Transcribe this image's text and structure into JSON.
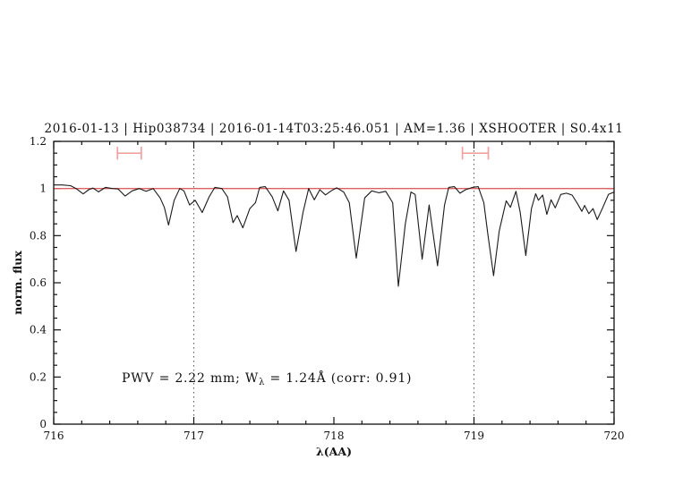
{
  "header": {
    "title": "2016-01-13 | Hip038734 | 2016-01-14T03:25:46.051 | AM=1.36 | XSHOOTER | S0.4x11"
  },
  "annotation": {
    "prefix": "PWV = 2.22 mm; W",
    "subscript": "λ",
    "suffix": " = 1.24Å (corr: 0.91)",
    "full_text": "PWV = 2.22 mm; Wλ = 1.24Å (corr: 0.91)"
  },
  "colors": {
    "title_blue": "#1a1ae0",
    "annotation_blue": "#1a1ae0",
    "spectrum_black": "#1a1a1a",
    "continuum_red": "#e06060",
    "marker_pink": "#f2a0a0",
    "guide_gray": "#555555",
    "axis_black": "#111111"
  },
  "chart_data": {
    "type": "line",
    "title": "2016-01-13 | Hip038734 | 2016-01-14T03:25:46.051 | AM=1.36 | XSHOOTER | S0.4x11",
    "xlabel": "λ(AA)",
    "ylabel": "norm. flux",
    "xlim": [
      716,
      720
    ],
    "ylim": [
      0,
      1.2
    ],
    "grid": false,
    "legend": null,
    "axes": {
      "xticks_major": [
        716,
        717,
        718,
        719,
        720
      ],
      "xtick_labels": [
        "716",
        "717",
        "718",
        "719",
        "720"
      ],
      "x_minor_step": 0.2,
      "yticks_major": [
        0,
        0.2,
        0.4,
        0.6,
        0.8,
        1,
        1.2
      ],
      "ytick_labels": [
        "0",
        "0.2",
        "0.4",
        "0.6",
        "0.8",
        "1",
        "1.2"
      ],
      "y_minor_step": 0.05,
      "box": true,
      "ticks_inward": true
    },
    "guide_lines_x": [
      717,
      719
    ],
    "continuum_level": 1.0,
    "interval_markers": [
      {
        "center": 716.54,
        "width": 0.17,
        "flux": 1.15,
        "cap_halfheight_flux": 0.027
      },
      {
        "center": 719.01,
        "width": 0.185,
        "flux": 1.15,
        "cap_halfheight_flux": 0.027
      }
    ],
    "series": [
      {
        "name": "observed-spectrum",
        "points": [
          [
            716.0,
            1.015
          ],
          [
            716.06,
            1.015
          ],
          [
            716.12,
            1.012
          ],
          [
            716.16,
            1.0
          ],
          [
            716.21,
            0.977
          ],
          [
            716.25,
            0.995
          ],
          [
            716.28,
            1.002
          ],
          [
            716.32,
            0.986
          ],
          [
            716.37,
            1.005
          ],
          [
            716.42,
            1.0
          ],
          [
            716.46,
            0.998
          ],
          [
            716.51,
            0.968
          ],
          [
            716.56,
            0.99
          ],
          [
            716.61,
            1.0
          ],
          [
            716.66,
            0.988
          ],
          [
            716.71,
            1.0
          ],
          [
            716.76,
            0.96
          ],
          [
            716.79,
            0.92
          ],
          [
            716.82,
            0.845
          ],
          [
            716.86,
            0.95
          ],
          [
            716.9,
            1.0
          ],
          [
            716.93,
            0.99
          ],
          [
            716.97,
            0.93
          ],
          [
            717.01,
            0.95
          ],
          [
            717.06,
            0.898
          ],
          [
            717.11,
            0.965
          ],
          [
            717.15,
            1.005
          ],
          [
            717.2,
            1.0
          ],
          [
            717.24,
            0.965
          ],
          [
            717.28,
            0.855
          ],
          [
            717.31,
            0.885
          ],
          [
            717.35,
            0.833
          ],
          [
            717.4,
            0.915
          ],
          [
            717.44,
            0.94
          ],
          [
            717.47,
            1.005
          ],
          [
            717.51,
            1.008
          ],
          [
            717.56,
            0.965
          ],
          [
            717.6,
            0.905
          ],
          [
            717.64,
            0.99
          ],
          [
            717.68,
            0.95
          ],
          [
            717.73,
            0.733
          ],
          [
            717.78,
            0.9
          ],
          [
            717.82,
            1.0
          ],
          [
            717.86,
            0.952
          ],
          [
            717.9,
            0.995
          ],
          [
            717.94,
            0.973
          ],
          [
            717.98,
            0.99
          ],
          [
            718.02,
            1.003
          ],
          [
            718.07,
            0.985
          ],
          [
            718.11,
            0.94
          ],
          [
            718.16,
            0.705
          ],
          [
            718.22,
            0.96
          ],
          [
            718.27,
            0.99
          ],
          [
            718.32,
            0.982
          ],
          [
            718.37,
            0.988
          ],
          [
            718.42,
            0.94
          ],
          [
            718.46,
            0.585
          ],
          [
            718.51,
            0.85
          ],
          [
            718.55,
            0.985
          ],
          [
            718.58,
            0.975
          ],
          [
            718.63,
            0.7
          ],
          [
            718.68,
            0.93
          ],
          [
            718.74,
            0.672
          ],
          [
            718.79,
            0.93
          ],
          [
            718.82,
            1.005
          ],
          [
            718.86,
            1.008
          ],
          [
            718.9,
            0.98
          ],
          [
            718.94,
            0.995
          ],
          [
            718.99,
            1.005
          ],
          [
            719.03,
            1.008
          ],
          [
            719.07,
            0.94
          ],
          [
            719.1,
            0.8
          ],
          [
            719.14,
            0.63
          ],
          [
            719.18,
            0.82
          ],
          [
            719.23,
            0.948
          ],
          [
            719.26,
            0.92
          ],
          [
            719.3,
            0.988
          ],
          [
            719.33,
            0.9
          ],
          [
            719.37,
            0.716
          ],
          [
            719.41,
            0.915
          ],
          [
            719.44,
            0.978
          ],
          [
            719.46,
            0.95
          ],
          [
            719.49,
            0.972
          ],
          [
            719.52,
            0.89
          ],
          [
            719.55,
            0.952
          ],
          [
            719.58,
            0.918
          ],
          [
            719.62,
            0.975
          ],
          [
            719.66,
            0.98
          ],
          [
            719.7,
            0.972
          ],
          [
            719.74,
            0.935
          ],
          [
            719.77,
            0.903
          ],
          [
            719.79,
            0.928
          ],
          [
            719.82,
            0.893
          ],
          [
            719.85,
            0.915
          ],
          [
            719.88,
            0.868
          ],
          [
            719.92,
            0.92
          ],
          [
            719.96,
            0.975
          ],
          [
            720.0,
            0.985
          ]
        ]
      }
    ]
  }
}
